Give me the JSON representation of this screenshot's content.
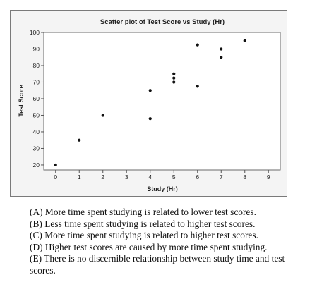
{
  "chart_data": {
    "type": "scatter",
    "title": "Scatter plot of Test Score vs Study (Hr)",
    "xlabel": "Study (Hr)",
    "ylabel": "Test Score",
    "xlim": [
      -0.5,
      9.5
    ],
    "ylim": [
      17,
      100
    ],
    "xticks": [
      0,
      1,
      2,
      3,
      4,
      5,
      6,
      7,
      8,
      9
    ],
    "yticks": [
      20,
      30,
      40,
      50,
      60,
      70,
      80,
      90,
      100
    ],
    "grid": false,
    "legend": "none",
    "marker_color": "#111111",
    "series": [
      {
        "points": [
          {
            "x": 0,
            "y": 20
          },
          {
            "x": 1,
            "y": 35
          },
          {
            "x": 2,
            "y": 50
          },
          {
            "x": 4,
            "y": 48
          },
          {
            "x": 4,
            "y": 65
          },
          {
            "x": 5,
            "y": 70
          },
          {
            "x": 5,
            "y": 72.5
          },
          {
            "x": 5,
            "y": 75
          },
          {
            "x": 6,
            "y": 67.5
          },
          {
            "x": 6,
            "y": 92.5
          },
          {
            "x": 7,
            "y": 85
          },
          {
            "x": 7,
            "y": 90
          },
          {
            "x": 8,
            "y": 95
          }
        ]
      }
    ]
  },
  "answer_options": [
    "(A) More time spent studying is related to lower test scores.",
    "(B) Less time spent studying is related to higher test scores.",
    "(C) More time spent studying is related to higher test scores.",
    "(D) Higher test scores are caused by more time spent studying.",
    "(E) There is no discernible relationship between study time and test scores."
  ]
}
